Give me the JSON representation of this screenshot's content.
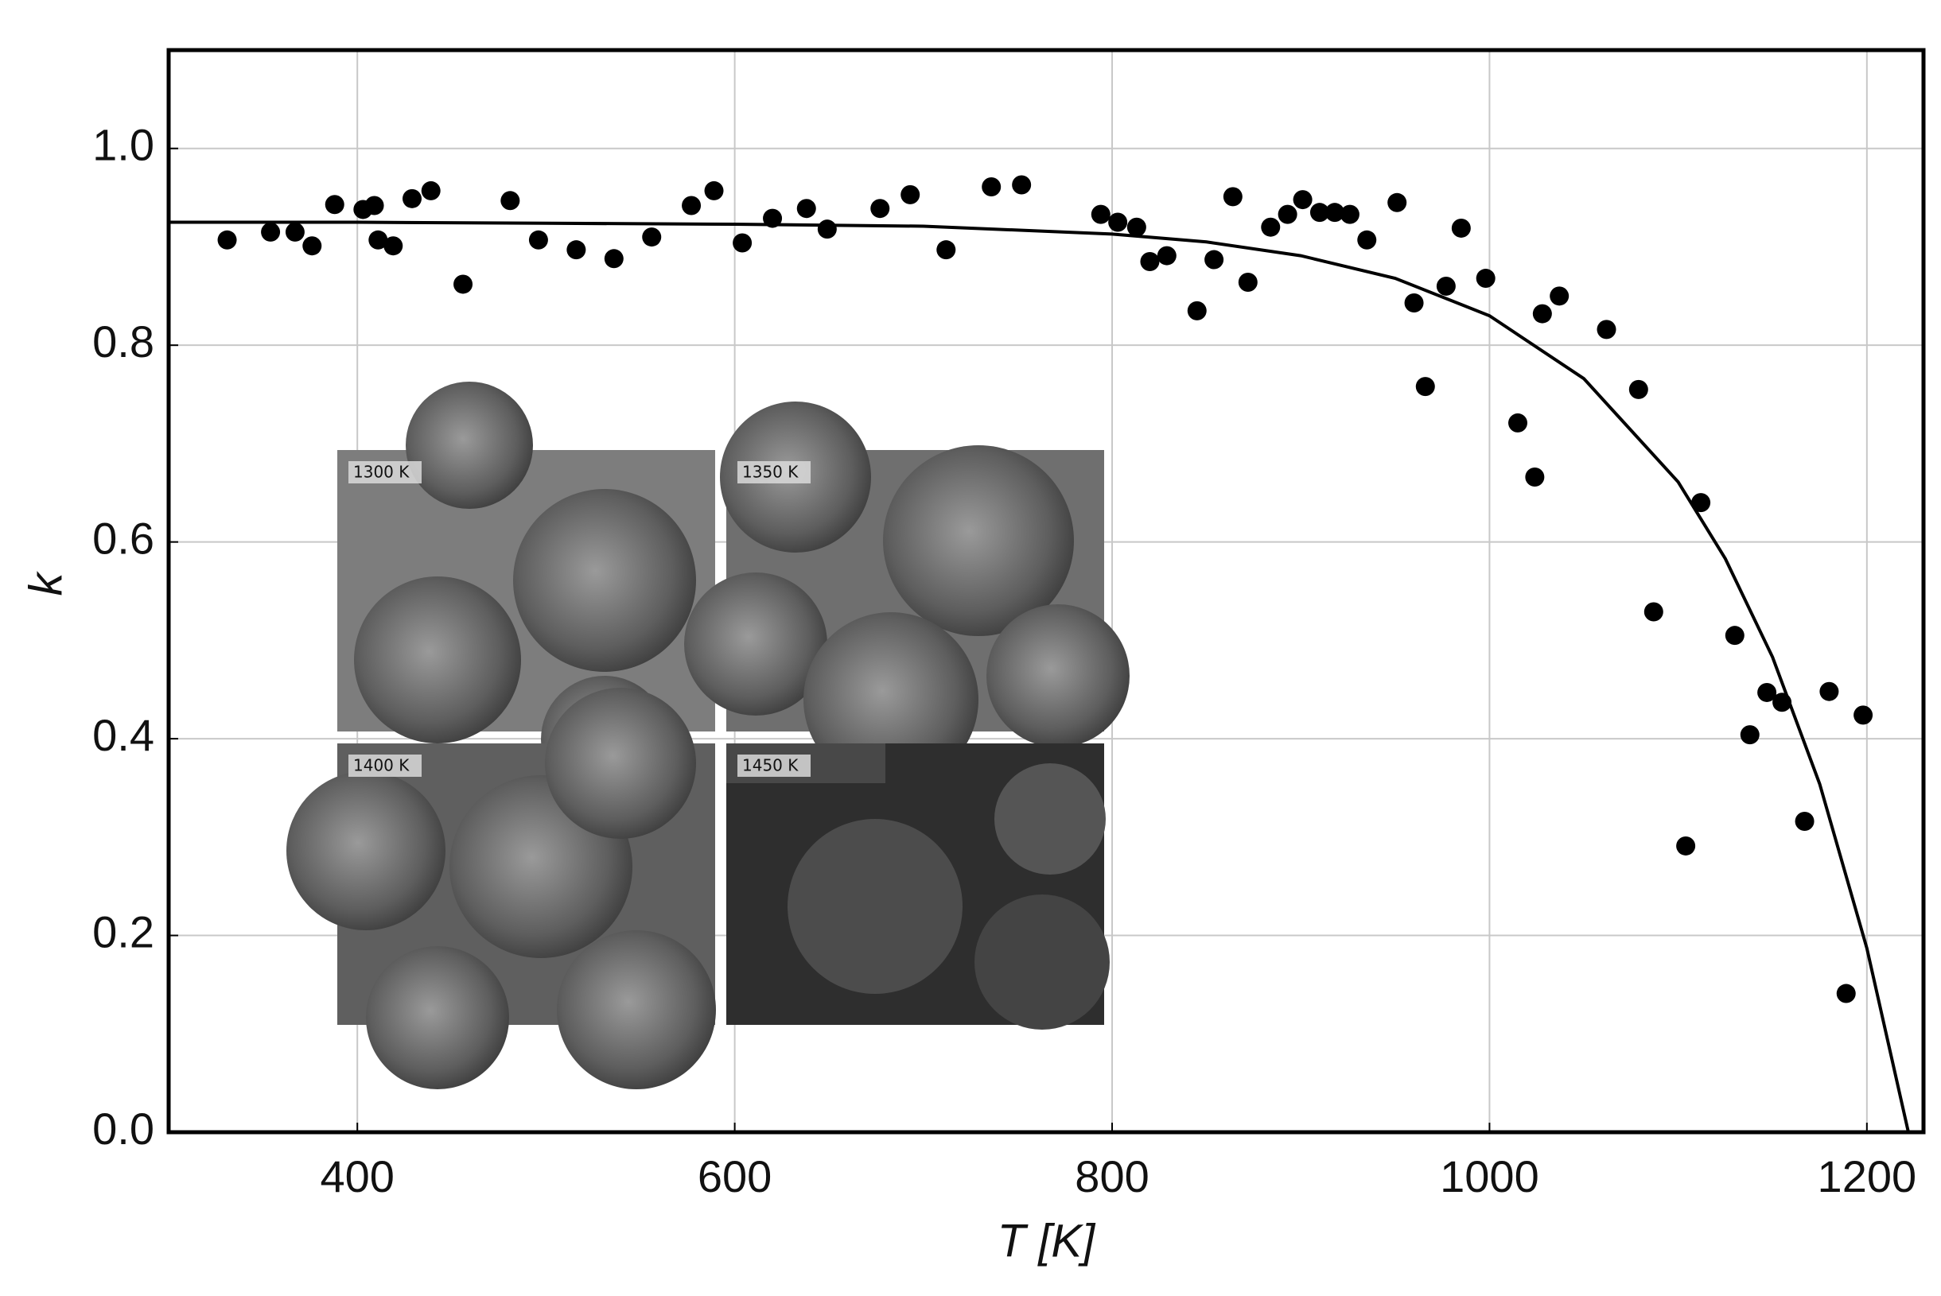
{
  "chart_data": {
    "type": "scatter",
    "xlabel": "T [K]",
    "ylabel": "k",
    "xlim": [
      300,
      1230
    ],
    "ylim": [
      0,
      1.1
    ],
    "xticks": [
      400,
      600,
      800,
      1000,
      1200
    ],
    "yticks": [
      {
        "value": 0,
        "label": "0.0"
      },
      0.2,
      0.4,
      0.6,
      0.8,
      {
        "value": 1,
        "label": "1.0"
      }
    ],
    "grid": true,
    "points": {
      "color": "#000000",
      "x": [
        331,
        354,
        367,
        376,
        388,
        403,
        409,
        411,
        419,
        429,
        439,
        456,
        481,
        496,
        516,
        536,
        556,
        577,
        589,
        604,
        620,
        638,
        649,
        677,
        693,
        712,
        736,
        752,
        794,
        803,
        813,
        820,
        829,
        845,
        854,
        864,
        872,
        884,
        893,
        901,
        910,
        918,
        926,
        935,
        951,
        960,
        966,
        977,
        985,
        998,
        1015,
        1024,
        1028,
        1037,
        1062,
        1079,
        1087,
        1104,
        1112,
        1130,
        1138,
        1147,
        1155,
        1167,
        1180,
        1189,
        1198
      ],
      "y": [
        0.907,
        0.915,
        0.915,
        0.901,
        0.943,
        0.938,
        0.942,
        0.907,
        0.901,
        0.949,
        0.957,
        0.862,
        0.947,
        0.907,
        0.897,
        0.888,
        0.91,
        0.942,
        0.957,
        0.904,
        0.929,
        0.939,
        0.918,
        0.939,
        0.953,
        0.897,
        0.961,
        0.963,
        0.933,
        0.925,
        0.92,
        0.885,
        0.891,
        0.835,
        0.887,
        0.951,
        0.864,
        0.92,
        0.933,
        0.948,
        0.935,
        0.935,
        0.933,
        0.907,
        0.945,
        0.843,
        0.758,
        0.86,
        0.919,
        0.868,
        0.721,
        0.666,
        0.832,
        0.85,
        0.816,
        0.755,
        0.529,
        0.291,
        0.64,
        0.505,
        0.404,
        0.447,
        0.437,
        0.316,
        0.448,
        0.141,
        0.424
      ]
    },
    "fit": {
      "color": "#000000",
      "x": [
        300,
        400,
        500,
        600,
        700,
        800,
        850,
        900,
        950,
        1000,
        1050,
        1100,
        1125,
        1150,
        1175,
        1200,
        1222
      ],
      "y": [
        0.925,
        0.925,
        0.924,
        0.923,
        0.921,
        0.913,
        0.905,
        0.891,
        0.868,
        0.83,
        0.766,
        0.661,
        0.583,
        0.483,
        0.354,
        0.187,
        0
      ]
    },
    "insets": [
      {
        "label": "1300 K"
      },
      {
        "label": "1350 K"
      },
      {
        "label": "1400 K"
      },
      {
        "label": "1450 K"
      }
    ]
  }
}
